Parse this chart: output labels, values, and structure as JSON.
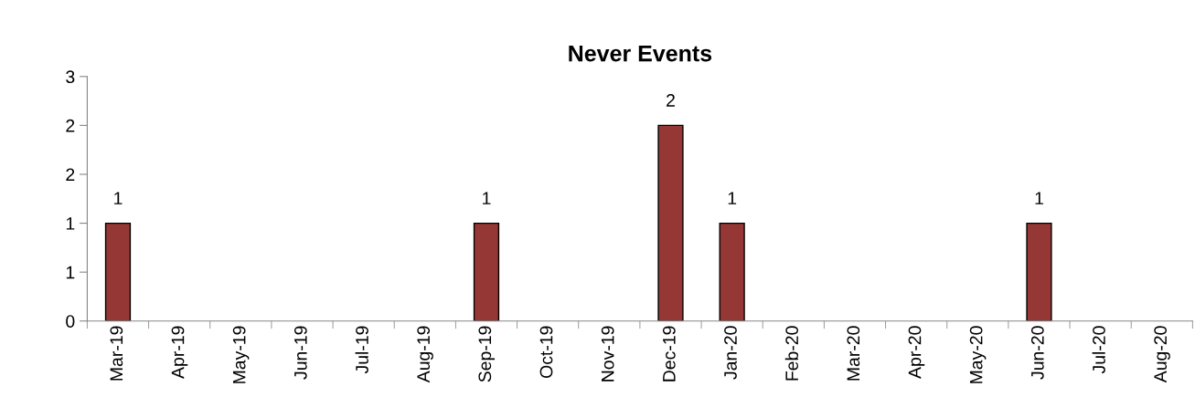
{
  "chart_data": {
    "type": "bar",
    "title": "Never Events",
    "categories": [
      "Mar-19",
      "Apr-19",
      "May-19",
      "Jun-19",
      "Jul-19",
      "Aug-19",
      "Sep-19",
      "Oct-19",
      "Nov-19",
      "Dec-19",
      "Jan-20",
      "Feb-20",
      "Mar-20",
      "Apr-20",
      "May-20",
      "Jun-20",
      "Jul-20",
      "Aug-20"
    ],
    "values": [
      1,
      0,
      0,
      0,
      0,
      0,
      1,
      0,
      0,
      2,
      1,
      0,
      0,
      0,
      0,
      1,
      0,
      0
    ],
    "value_labels": [
      "1",
      null,
      null,
      null,
      null,
      null,
      "1",
      null,
      null,
      "2",
      "1",
      null,
      null,
      null,
      null,
      "1",
      null,
      null
    ],
    "color": "#953735",
    "ylim": [
      0,
      2.5
    ],
    "yticks": [
      0,
      {
        "value": 0.5,
        "label": "1"
      },
      1,
      {
        "value": 1.5,
        "label": "2"
      },
      2,
      {
        "value": 2.5,
        "label": "3"
      }
    ],
    "grid": false,
    "legend": false
  }
}
